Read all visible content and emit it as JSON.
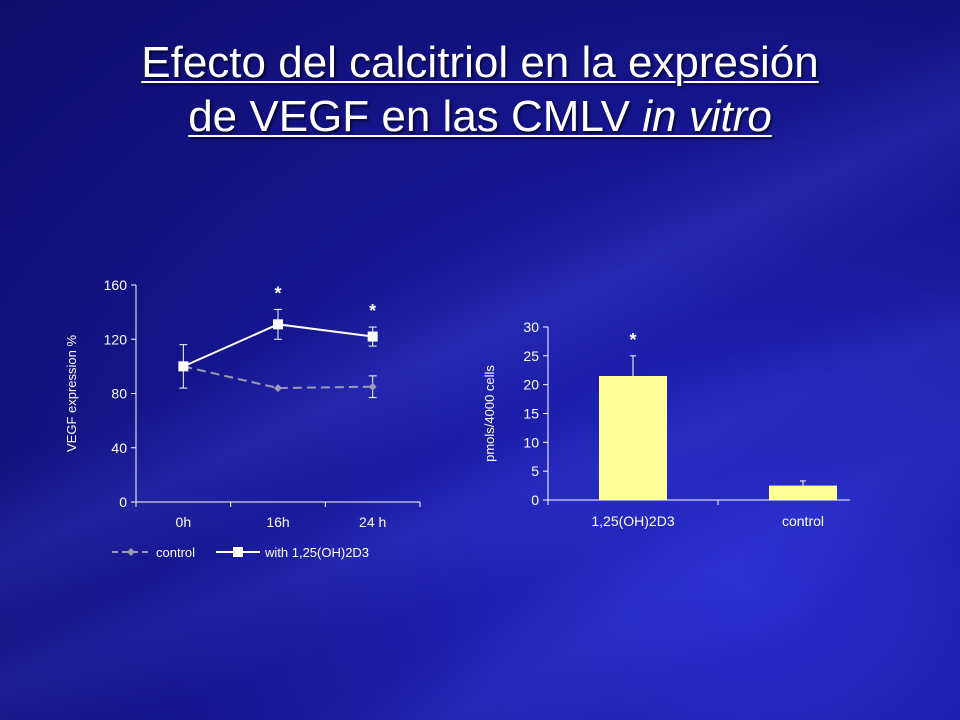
{
  "title": {
    "line1": "Efecto del calcitriol en la expresión",
    "line2": "de VEGF en las CMLV ",
    "line2_italic": "in vitro"
  },
  "colors": {
    "background": "#16178f",
    "line_with": "#ffffff",
    "line_control": "#9a9ab4",
    "bar_fill": "#ffff99"
  },
  "chart_data": [
    {
      "type": "line",
      "ylabel": "VEGF expression %",
      "xlabel": "",
      "categories": [
        "0h",
        "16h",
        "24 h"
      ],
      "ylim": [
        0,
        160
      ],
      "yticks": [
        0,
        40,
        80,
        120,
        160
      ],
      "series": [
        {
          "name": "control",
          "values": [
            100,
            84,
            85
          ],
          "errors": [
            16,
            0,
            8
          ],
          "marker": "diamond",
          "style": "dashed"
        },
        {
          "name": "with 1,25(OH)2D3",
          "values": [
            100,
            131,
            122
          ],
          "errors": [
            0,
            11,
            7
          ],
          "marker": "square",
          "style": "solid"
        }
      ],
      "annotations": [
        {
          "category": "16h",
          "text": "*"
        },
        {
          "category": "24 h",
          "text": "*"
        }
      ],
      "legend": "bottom"
    },
    {
      "type": "bar",
      "ylabel": "pmols/4000 cells",
      "xlabel": "",
      "categories": [
        "1,25(OH)2D3",
        "control"
      ],
      "values": [
        21.5,
        2.5
      ],
      "errors": [
        3.5,
        0.8
      ],
      "ylim": [
        0,
        30
      ],
      "yticks": [
        0,
        5,
        10,
        15,
        20,
        25,
        30
      ],
      "annotations": [
        {
          "category": "1,25(OH)2D3",
          "text": "*"
        }
      ]
    }
  ]
}
